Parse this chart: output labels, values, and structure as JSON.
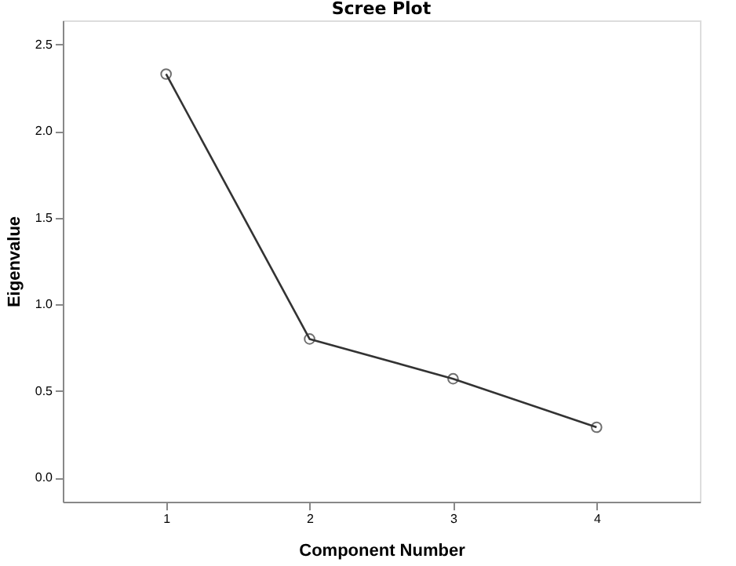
{
  "chart_data": {
    "type": "line",
    "title": "Scree Plot",
    "xlabel": "Component Number",
    "ylabel": "Eigenvalue",
    "x": [
      1,
      2,
      3,
      4
    ],
    "series": [
      {
        "color": "#333333",
        "values": [
          2.33,
          0.8,
          0.57,
          0.29
        ]
      }
    ],
    "xlim": [
      0.28,
      4.72
    ],
    "xticks": [
      1,
      2,
      3,
      4
    ],
    "ylim": [
      -0.14,
      2.64
    ],
    "yticks": [
      {
        "value": 0,
        "label": "0.0"
      },
      {
        "value": 0.5,
        "label": "0.5"
      },
      {
        "value": 1,
        "label": "1.0"
      },
      {
        "value": 1.5,
        "label": "1.5"
      },
      {
        "value": 2,
        "label": "2.0"
      },
      {
        "value": 2.5,
        "label": "2.5"
      }
    ],
    "grid": false,
    "marker": "circle",
    "line_style": "solid"
  }
}
